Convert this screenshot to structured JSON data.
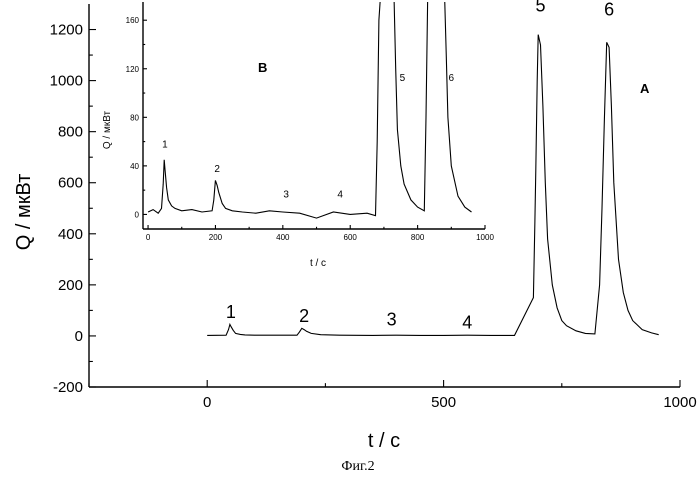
{
  "chart_data": [
    {
      "panel": "A",
      "type": "line",
      "xlabel": "t / c",
      "ylabel": "Q / мкВт",
      "xlim": [
        -250,
        1000
      ],
      "ylim": [
        -200,
        1300
      ],
      "x_ticks": [
        0,
        500,
        1000
      ],
      "y_ticks": [
        -200,
        0,
        200,
        400,
        600,
        800,
        1000,
        1200
      ],
      "series": [
        {
          "x": [
            0,
            40,
            45,
            48,
            50,
            55,
            60,
            70,
            80,
            100,
            150,
            190,
            195,
            200,
            205,
            210,
            220,
            240,
            280,
            350,
            400,
            450,
            500,
            550,
            600,
            650,
            690,
            693,
            695,
            698,
            700,
            705,
            710,
            715,
            720,
            730,
            740,
            750,
            760,
            780,
            800,
            820,
            830,
            835,
            840,
            845,
            850,
            855,
            860,
            870,
            880,
            890,
            900,
            920,
            940,
            955
          ],
          "y": [
            2,
            3,
            25,
            45,
            38,
            22,
            10,
            6,
            4,
            3,
            3,
            3,
            15,
            30,
            25,
            18,
            10,
            5,
            3,
            2,
            3,
            2,
            2,
            3,
            2,
            2,
            150,
            450,
            650,
            1000,
            1180,
            1140,
            900,
            600,
            380,
            200,
            110,
            60,
            40,
            20,
            10,
            8,
            200,
            500,
            850,
            1150,
            1130,
            900,
            600,
            300,
            170,
            100,
            60,
            25,
            12,
            5
          ]
        }
      ],
      "peak_labels": [
        {
          "label": "1",
          "x": 50,
          "y": 70
        },
        {
          "label": "2",
          "x": 205,
          "y": 55
        },
        {
          "label": "3",
          "x": 390,
          "y": 40
        },
        {
          "label": "4",
          "x": 550,
          "y": 30
        },
        {
          "label": "5",
          "x": 705,
          "y": 1270
        },
        {
          "label": "6",
          "x": 850,
          "y": 1255
        }
      ]
    },
    {
      "panel": "B",
      "type": "line",
      "xlabel": "t / c",
      "ylabel": "Q / мкВт",
      "xlim": [
        -15,
        1000
      ],
      "ylim": [
        -12,
        175
      ],
      "x_ticks": [
        0,
        200,
        400,
        600,
        800,
        1000
      ],
      "y_ticks": [
        0,
        40,
        80,
        120,
        160
      ],
      "series": [
        {
          "x": [
            0,
            15,
            30,
            40,
            45,
            48,
            50,
            55,
            60,
            70,
            80,
            100,
            130,
            160,
            190,
            195,
            200,
            205,
            210,
            220,
            230,
            250,
            280,
            320,
            360,
            400,
            450,
            500,
            550,
            600,
            650,
            675,
            680,
            685,
            690,
            695,
            700,
            730,
            735,
            740,
            750,
            760,
            780,
            800,
            820,
            825,
            830,
            835,
            840,
            880,
            885,
            890,
            900,
            920,
            940,
            960
          ],
          "y": [
            2,
            4,
            1,
            5,
            25,
            45,
            38,
            22,
            12,
            7,
            5,
            3,
            4,
            2,
            3,
            12,
            28,
            24,
            18,
            9,
            5,
            3,
            2,
            1,
            3,
            2,
            1,
            -3,
            2,
            0,
            1,
            -1,
            60,
            160,
            180,
            180,
            180,
            180,
            120,
            70,
            40,
            25,
            12,
            6,
            3,
            80,
            180,
            180,
            180,
            180,
            130,
            80,
            40,
            15,
            6,
            2
          ]
        }
      ],
      "peak_labels": [
        {
          "label": "1",
          "x": 50,
          "y": 55
        },
        {
          "label": "2",
          "x": 205,
          "y": 35
        },
        {
          "label": "3",
          "x": 410,
          "y": 14
        },
        {
          "label": "4",
          "x": 570,
          "y": 14
        },
        {
          "label": "5",
          "x": 755,
          "y": 110
        },
        {
          "label": "6",
          "x": 900,
          "y": 110
        }
      ]
    }
  ],
  "panel_labels": {
    "main": "A",
    "inset": "B"
  },
  "caption": "Фиг.2"
}
